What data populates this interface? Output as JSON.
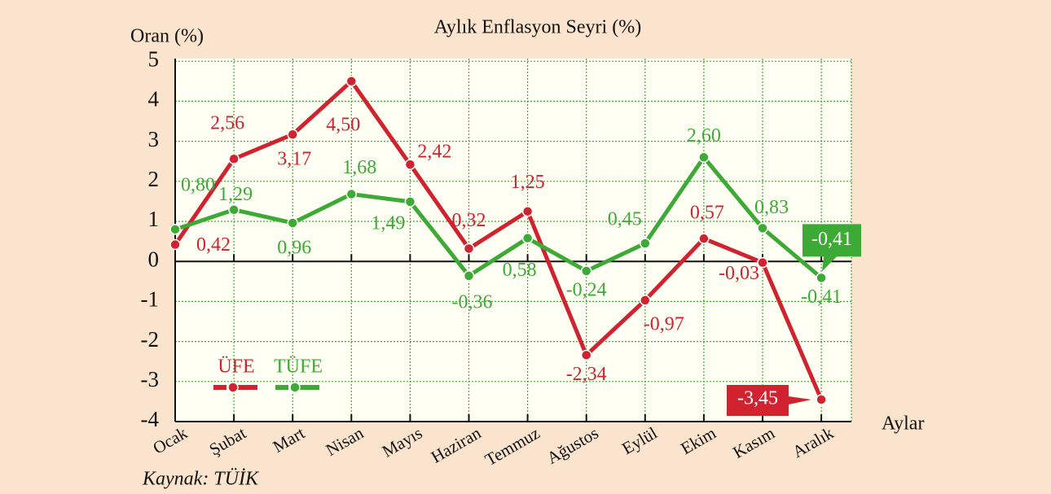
{
  "chart_data": {
    "type": "line",
    "title": "Aylık Enflasyon Seyri (%)",
    "y_label": "Oran (%)",
    "x_label": "Aylar",
    "source": "Kaynak: TÜİK",
    "categories": [
      "Ocak",
      "Şubat",
      "Mart",
      "Nisan",
      "Mayıs",
      "Haziran",
      "Temmuz",
      "Ağustos",
      "Eylül",
      "Ekim",
      "Kasım",
      "Aralık"
    ],
    "series": [
      {
        "name": "ÜFE",
        "color": "#d1222f",
        "values": [
          0.42,
          2.56,
          3.17,
          4.5,
          2.42,
          0.32,
          1.25,
          -2.34,
          -0.97,
          0.57,
          -0.03,
          -3.45
        ],
        "value_labels": [
          "0,42",
          "2,56",
          "3,17",
          "4,50",
          "2,42",
          "0,32",
          "1,25",
          "-2,34",
          "-0,97",
          "0,57",
          "-0,03",
          "-3,45"
        ]
      },
      {
        "name": "TÜFE",
        "color": "#3daa36",
        "values": [
          0.8,
          1.29,
          0.96,
          1.68,
          1.49,
          -0.36,
          0.58,
          -0.24,
          0.45,
          2.6,
          0.83,
          -0.41
        ],
        "value_labels": [
          "0,80",
          "1,29",
          "0,96",
          "1,68",
          "1,49",
          "-0,36",
          "0,58",
          "-0,24",
          "0,45",
          "2,60",
          "0,83",
          "-0,41"
        ]
      }
    ],
    "ylim": [
      -4,
      6
    ],
    "yticks": [
      -4,
      -3,
      -2,
      -1,
      0,
      1,
      2,
      3,
      4,
      5
    ],
    "grid": true,
    "legend": "lower-left"
  }
}
